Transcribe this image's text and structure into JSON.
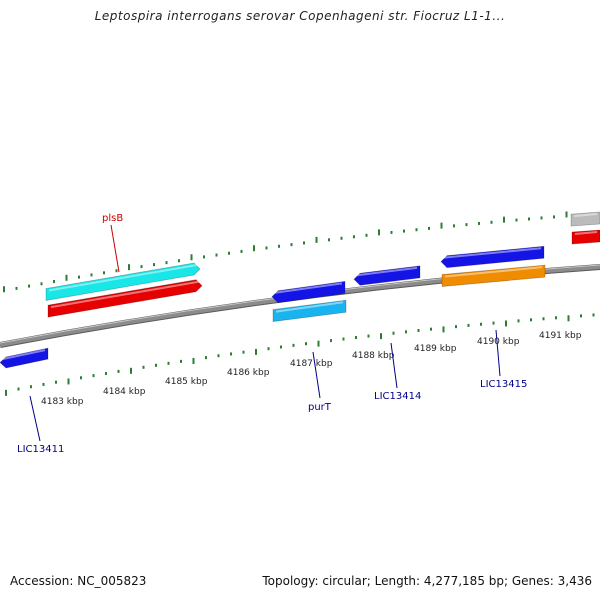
{
  "title": "Leptospira interrogans serovar Copenhageni str. Fiocruz L1-1...",
  "footer": {
    "accession": "Accession: NC_005823",
    "summary": "Topology: circular; Length: 4,277,185 bp; Genes: 3,436"
  },
  "colors": {
    "backbone": "#8c8c8c",
    "tick": "#2e7d32",
    "gene_label": "#00008b",
    "highlight_label": "#cc0000",
    "blue": "#1414e6",
    "red": "#e60000",
    "cyan": "#19e6e6",
    "light_blue": "#19b4f0",
    "orange": "#f08c00",
    "grey": "#bbbbbb"
  },
  "scale_labels": [
    "4183 kbp",
    "4184 kbp",
    "4185 kbp",
    "4186 kbp",
    "4187 kbp",
    "4188 kbp",
    "4189 kbp",
    "4190 kbp",
    "4191 kbp"
  ],
  "gene_labels": [
    {
      "id": "plsB",
      "text": "plsB",
      "color": "highlight"
    },
    {
      "id": "purT",
      "text": "purT",
      "color": "gene"
    },
    {
      "id": "LIC13414",
      "text": "LIC13414",
      "color": "gene"
    },
    {
      "id": "LIC13415",
      "text": "LIC13415",
      "color": "gene"
    },
    {
      "id": "LIC13411",
      "text": "LIC13411",
      "color": "gene"
    }
  ],
  "features": [
    {
      "id": "lic13411-arrow",
      "color": "blue",
      "direction": "left"
    },
    {
      "id": "plsB-arrow-cyan",
      "color": "cyan",
      "direction": "right"
    },
    {
      "id": "plsB-arrow-red",
      "color": "red",
      "direction": "right"
    },
    {
      "id": "purT-arrow-blue",
      "color": "blue",
      "direction": "left"
    },
    {
      "id": "purT-arrow-lightblue",
      "color": "light_blue",
      "direction": "none"
    },
    {
      "id": "lic13414-arrow",
      "color": "blue",
      "direction": "left"
    },
    {
      "id": "lic13415-arrow-blue",
      "color": "blue",
      "direction": "left"
    },
    {
      "id": "lic13415-arrow-orange",
      "color": "orange",
      "direction": "none"
    },
    {
      "id": "edge-grey",
      "color": "grey",
      "direction": "none"
    },
    {
      "id": "edge-red",
      "color": "red",
      "direction": "none"
    }
  ]
}
